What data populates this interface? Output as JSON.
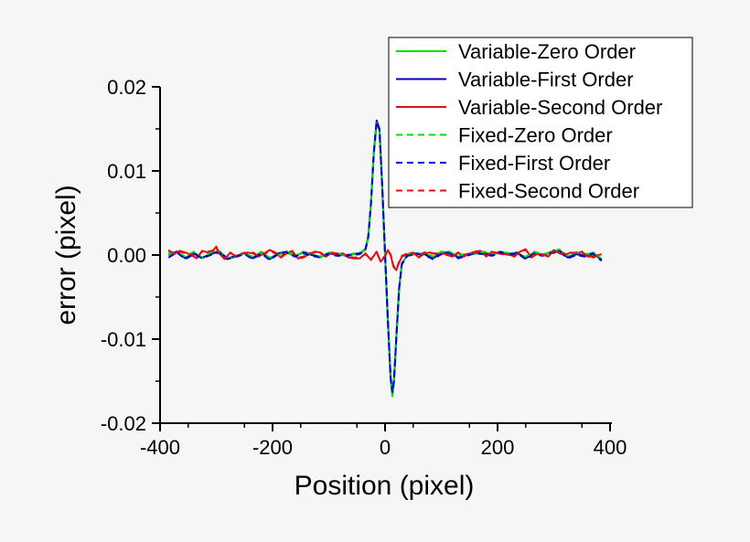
{
  "chart_data": {
    "type": "line",
    "xlabel": "Position (pixel)",
    "ylabel": "error (pixel)",
    "xlim": [
      -400,
      400
    ],
    "ylim": [
      -0.02,
      0.02
    ],
    "x_ticks": [
      -400,
      -200,
      0,
      200,
      400
    ],
    "x_tick_labels": [
      "-400",
      "-200",
      "0",
      "200",
      "400"
    ],
    "y_ticks": [
      -0.02,
      -0.01,
      0.0,
      0.01,
      0.02
    ],
    "y_tick_labels": [
      "-0.02",
      "-0.01",
      "0.00",
      "0.01",
      "0.02"
    ],
    "grid": false,
    "legend_position": "top-right",
    "series": [
      {
        "name": "Variable-Zero Order",
        "color": "#00e000",
        "style": "solid",
        "x": [
          -385,
          -370,
          -355,
          -340,
          -325,
          -310,
          -295,
          -280,
          -265,
          -250,
          -235,
          -220,
          -205,
          -190,
          -175,
          -160,
          -145,
          -130,
          -115,
          -100,
          -85,
          -70,
          -55,
          -45,
          -35,
          -30,
          -25,
          -20,
          -15,
          -10,
          -5,
          0,
          5,
          10,
          13,
          16,
          20,
          25,
          30,
          40,
          55,
          70,
          85,
          100,
          115,
          130,
          145,
          160,
          175,
          190,
          205,
          220,
          235,
          250,
          265,
          280,
          295,
          310,
          325,
          340,
          355,
          370,
          385
        ],
        "y": [
          0.0002,
          0.0004,
          -0.0003,
          0.0003,
          -0.0004,
          0.0002,
          0.0005,
          -0.0005,
          -0.0002,
          0.0003,
          -0.0003,
          0.0004,
          -0.0004,
          0.0001,
          0.0003,
          -0.0002,
          0.0004,
          0.0001,
          -0.0003,
          0.0003,
          0.0001,
          -0.0001,
          0.0002,
          0.0002,
          0.0006,
          0.002,
          0.006,
          0.012,
          0.0158,
          0.0148,
          0.008,
          0.0,
          -0.008,
          -0.0148,
          -0.0168,
          -0.0152,
          -0.01,
          -0.004,
          -0.001,
          0.0,
          0.0001,
          0.0002,
          -0.0003,
          0.0003,
          0.0004,
          -0.0002,
          0.0001,
          0.0002,
          0.0003,
          0.0001,
          0.0003,
          0.0002,
          0.0002,
          -0.0003,
          0.0003,
          0.0,
          0.0004,
          0.0006,
          -0.0002,
          0.0002,
          0.0,
          0.0003,
          -0.0005
        ]
      },
      {
        "name": "Variable-First Order",
        "color": "#0000b4",
        "style": "solid",
        "x": [
          -385,
          -370,
          -355,
          -340,
          -325,
          -310,
          -295,
          -280,
          -265,
          -250,
          -235,
          -220,
          -205,
          -190,
          -175,
          -160,
          -145,
          -130,
          -115,
          -100,
          -85,
          -70,
          -55,
          -45,
          -35,
          -30,
          -25,
          -20,
          -15,
          -10,
          -5,
          0,
          5,
          10,
          13,
          16,
          20,
          25,
          30,
          40,
          55,
          70,
          85,
          100,
          115,
          130,
          145,
          160,
          175,
          190,
          205,
          220,
          235,
          250,
          265,
          280,
          295,
          310,
          325,
          340,
          355,
          370,
          385
        ],
        "y": [
          0.0,
          0.0004,
          -0.0004,
          0.0002,
          -0.0003,
          0.0001,
          0.0004,
          -0.0004,
          -0.0001,
          0.0002,
          -0.0004,
          0.0003,
          -0.0005,
          0.0002,
          0.0004,
          -0.0001,
          0.0003,
          0.0,
          -0.0002,
          0.0002,
          0.0,
          0.0,
          0.0001,
          0.0002,
          0.0007,
          0.0022,
          0.0062,
          0.0122,
          0.016,
          0.015,
          0.0082,
          0.0001,
          -0.0078,
          -0.0146,
          -0.0162,
          -0.0148,
          -0.0098,
          -0.0039,
          -0.001,
          0.0,
          0.0002,
          0.0001,
          -0.0004,
          0.0002,
          0.0003,
          -0.0003,
          0.0,
          0.0003,
          0.0002,
          0.0,
          0.0004,
          0.0001,
          0.0003,
          -0.0004,
          0.0002,
          0.0,
          0.0003,
          0.0005,
          -0.0003,
          0.0001,
          -0.0001,
          0.0002,
          -0.0006
        ]
      },
      {
        "name": "Variable-Second Order",
        "color": "#e01010",
        "style": "solid",
        "x": [
          -385,
          -375,
          -365,
          -355,
          -345,
          -335,
          -325,
          -315,
          -305,
          -300,
          -295,
          -285,
          -275,
          -265,
          -255,
          -245,
          -235,
          -225,
          -215,
          -205,
          -195,
          -185,
          -175,
          -165,
          -155,
          -145,
          -135,
          -125,
          -115,
          -105,
          -95,
          -85,
          -75,
          -65,
          -55,
          -45,
          -35,
          -25,
          -15,
          -8,
          0,
          5,
          10,
          15,
          20,
          25,
          30,
          40,
          50,
          60,
          70,
          80,
          90,
          100,
          110,
          120,
          130,
          140,
          150,
          160,
          170,
          180,
          190,
          200,
          210,
          220,
          230,
          240,
          250,
          260,
          270,
          280,
          290,
          300,
          310,
          320,
          330,
          340,
          350,
          360,
          370,
          385
        ],
        "y": [
          0.0006,
          0.0001,
          0.0005,
          0.0003,
          0.0,
          -0.0004,
          0.0005,
          0.0003,
          0.0006,
          0.001,
          0.0002,
          -0.0005,
          0.0003,
          -0.0002,
          0.0001,
          0.0003,
          0.0002,
          -0.0002,
          0.0002,
          0.0006,
          0.0003,
          -0.0003,
          0.0002,
          0.0005,
          -0.0004,
          -0.0003,
          0.0001,
          0.0004,
          0.0003,
          -0.0002,
          0.0003,
          0.0002,
          0.0001,
          -0.0003,
          -0.0004,
          -0.0004,
          0.0002,
          -0.0006,
          0.0004,
          -0.0008,
          -0.0002,
          0.0006,
          0.0,
          -0.0014,
          -0.0018,
          -0.0009,
          -0.0002,
          0.0001,
          0.0003,
          -0.0003,
          0.0002,
          0.0003,
          0.0001,
          0.0003,
          0.0,
          -0.0002,
          0.0003,
          -0.0002,
          0.0002,
          0.0004,
          0.0005,
          -0.0002,
          0.0004,
          0.0002,
          0.0001,
          0.0001,
          -0.0002,
          0.0004,
          0.0007,
          -0.0003,
          0.0001,
          0.0001,
          -0.0002,
          0.0006,
          0.0002,
          0.0,
          0.0003,
          0.0002,
          0.0004,
          -0.0002,
          -0.0002,
          0.0001
        ]
      },
      {
        "name": "Fixed-Zero Order",
        "color": "#00e000",
        "style": "dashed",
        "x": [
          -385,
          -370,
          -355,
          -340,
          -325,
          -310,
          -295,
          -280,
          -265,
          -250,
          -235,
          -220,
          -205,
          -190,
          -175,
          -160,
          -145,
          -130,
          -115,
          -100,
          -85,
          -70,
          -55,
          -45,
          -35,
          -30,
          -25,
          -20,
          -15,
          -10,
          -5,
          0,
          5,
          10,
          13,
          16,
          20,
          25,
          30,
          40,
          55,
          70,
          85,
          100,
          115,
          130,
          145,
          160,
          175,
          190,
          205,
          220,
          235,
          250,
          265,
          280,
          295,
          310,
          325,
          340,
          355,
          370,
          385
        ],
        "y": [
          0.0001,
          0.0003,
          -0.0002,
          0.0004,
          -0.0003,
          0.0003,
          0.0004,
          -0.0004,
          -0.0003,
          0.0002,
          -0.0002,
          0.0003,
          -0.0003,
          0.0,
          0.0004,
          -0.0001,
          0.0003,
          0.0002,
          -0.0002,
          0.0002,
          0.0002,
          -0.0001,
          0.0001,
          0.0003,
          0.0006,
          0.0021,
          0.0061,
          0.0121,
          0.0157,
          0.0147,
          0.0079,
          0.0,
          -0.0079,
          -0.0147,
          -0.0166,
          -0.015,
          -0.0099,
          -0.0041,
          -0.0011,
          0.0001,
          0.0,
          0.0003,
          -0.0002,
          0.0004,
          0.0003,
          -0.0001,
          0.0002,
          0.0001,
          0.0004,
          0.0002,
          0.0002,
          0.0003,
          0.0001,
          -0.0002,
          0.0004,
          0.0001,
          0.0003,
          0.0007,
          -0.0001,
          0.0003,
          0.0001,
          0.0002,
          -0.0004
        ]
      },
      {
        "name": "Fixed-First Order",
        "color": "#0000e0",
        "style": "dashed",
        "x": [
          -385,
          -370,
          -355,
          -340,
          -325,
          -310,
          -295,
          -280,
          -265,
          -250,
          -235,
          -220,
          -205,
          -190,
          -175,
          -160,
          -145,
          -130,
          -115,
          -100,
          -85,
          -70,
          -55,
          -45,
          -35,
          -30,
          -25,
          -20,
          -15,
          -10,
          -5,
          0,
          5,
          10,
          13,
          16,
          20,
          25,
          30,
          40,
          55,
          70,
          85,
          100,
          115,
          130,
          145,
          160,
          175,
          190,
          205,
          220,
          235,
          250,
          265,
          280,
          295,
          310,
          325,
          340,
          355,
          370,
          385
        ],
        "y": [
          -0.0003,
          0.0003,
          -0.0005,
          0.0001,
          -0.0004,
          0.0,
          0.0003,
          -0.0005,
          -0.0002,
          0.0001,
          -0.0005,
          0.0002,
          -0.0006,
          0.0001,
          0.0003,
          -0.0002,
          0.0002,
          -0.0001,
          -0.0003,
          0.0001,
          -0.0001,
          -0.0001,
          0.0,
          0.0001,
          0.0006,
          0.0021,
          0.0061,
          0.0121,
          0.0159,
          0.0149,
          0.0081,
          0.0,
          -0.0079,
          -0.0147,
          -0.0163,
          -0.0149,
          -0.0099,
          -0.004,
          -0.0011,
          -0.0001,
          0.0001,
          0.0,
          -0.0005,
          0.0001,
          0.0002,
          -0.0004,
          -0.0001,
          0.0002,
          0.0001,
          -0.0001,
          0.0003,
          0.0,
          0.0002,
          -0.0005,
          0.0001,
          -0.0001,
          0.0002,
          0.0004,
          -0.0004,
          0.0,
          -0.0002,
          0.0001,
          -0.0007
        ]
      },
      {
        "name": "Fixed-Second Order",
        "color": "#e01010",
        "style": "dashed",
        "x": [
          -385,
          -375,
          -365,
          -355,
          -345,
          -335,
          -325,
          -315,
          -305,
          -300,
          -295,
          -285,
          -275,
          -265,
          -255,
          -245,
          -235,
          -225,
          -215,
          -205,
          -195,
          -185,
          -175,
          -165,
          -155,
          -145,
          -135,
          -125,
          -115,
          -105,
          -95,
          -85,
          -75,
          -65,
          -55,
          -45,
          -35,
          -25,
          -15,
          -8,
          0,
          5,
          10,
          15,
          20,
          25,
          30,
          40,
          50,
          60,
          70,
          80,
          90,
          100,
          110,
          120,
          130,
          140,
          150,
          160,
          170,
          180,
          190,
          200,
          210,
          220,
          230,
          240,
          250,
          260,
          270,
          280,
          290,
          300,
          310,
          320,
          330,
          340,
          350,
          360,
          370,
          385
        ],
        "y": [
          0.0005,
          0.0002,
          0.0004,
          0.0002,
          0.0001,
          -0.0003,
          0.0004,
          0.0004,
          0.0005,
          0.0009,
          0.0001,
          -0.0004,
          0.0002,
          -0.0001,
          0.0002,
          0.0002,
          0.0003,
          -0.0001,
          0.0001,
          0.0005,
          0.0002,
          -0.0002,
          0.0003,
          0.0004,
          -0.0003,
          -0.0002,
          0.0002,
          0.0003,
          0.0002,
          -0.0001,
          0.0002,
          0.0001,
          0.0002,
          -0.0002,
          -0.0003,
          -0.0003,
          0.0001,
          -0.0005,
          0.0003,
          -0.0007,
          -0.0001,
          0.0005,
          0.0001,
          -0.0013,
          -0.0017,
          -0.0008,
          -0.0001,
          0.0002,
          0.0002,
          -0.0002,
          0.0003,
          0.0002,
          0.0002,
          0.0002,
          0.0001,
          -0.0001,
          0.0002,
          -0.0001,
          0.0003,
          0.0003,
          0.0004,
          -0.0001,
          0.0003,
          0.0003,
          0.0002,
          0.0,
          -0.0001,
          0.0003,
          0.0006,
          -0.0002,
          0.0002,
          0.0,
          -0.0001,
          0.0005,
          0.0003,
          0.0001,
          0.0002,
          0.0003,
          0.0003,
          -0.0001,
          -0.0003,
          0.0002
        ]
      }
    ]
  }
}
